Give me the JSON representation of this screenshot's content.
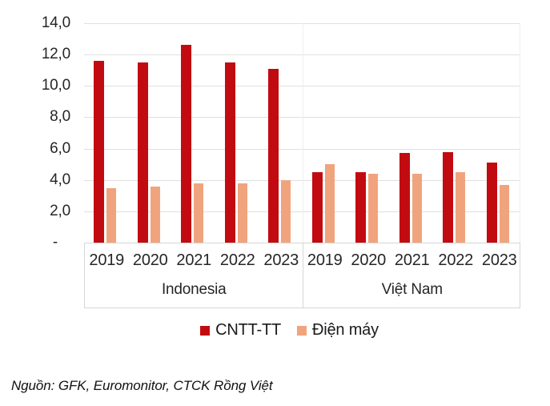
{
  "chart_data": {
    "type": "bar",
    "title": "",
    "xlabel": "",
    "ylabel": "",
    "ylim": [
      0,
      14
    ],
    "grid": true,
    "legend_position": "bottom",
    "yticks": [
      {
        "value": 0,
        "label": "-"
      },
      {
        "value": 2,
        "label": "2,0"
      },
      {
        "value": 4,
        "label": "4,0"
      },
      {
        "value": 6,
        "label": "6,0"
      },
      {
        "value": 8,
        "label": "8,0"
      },
      {
        "value": 10,
        "label": "10,0"
      },
      {
        "value": 12,
        "label": "12,0"
      },
      {
        "value": 14,
        "label": "14,0"
      }
    ],
    "groups": [
      {
        "label": "Indonesia",
        "categories": [
          "2019",
          "2020",
          "2021",
          "2022",
          "2023"
        ]
      },
      {
        "label": "Việt Nam",
        "categories": [
          "2019",
          "2020",
          "2021",
          "2022",
          "2023"
        ]
      }
    ],
    "series": [
      {
        "name": "CNTT-TT",
        "color": "#c20b10",
        "values": [
          [
            11.6,
            11.5,
            12.6,
            11.5,
            11.1
          ],
          [
            4.5,
            4.5,
            5.7,
            5.8,
            5.1
          ]
        ]
      },
      {
        "name": "Điện máy",
        "color": "#f0a47d",
        "values": [
          [
            3.5,
            3.6,
            3.8,
            3.8,
            4.0
          ],
          [
            5.0,
            4.4,
            4.4,
            4.5,
            3.7
          ]
        ]
      }
    ]
  },
  "source_note": "Nguồn: GFK, Euromonitor, CTCK Rồng Việt"
}
